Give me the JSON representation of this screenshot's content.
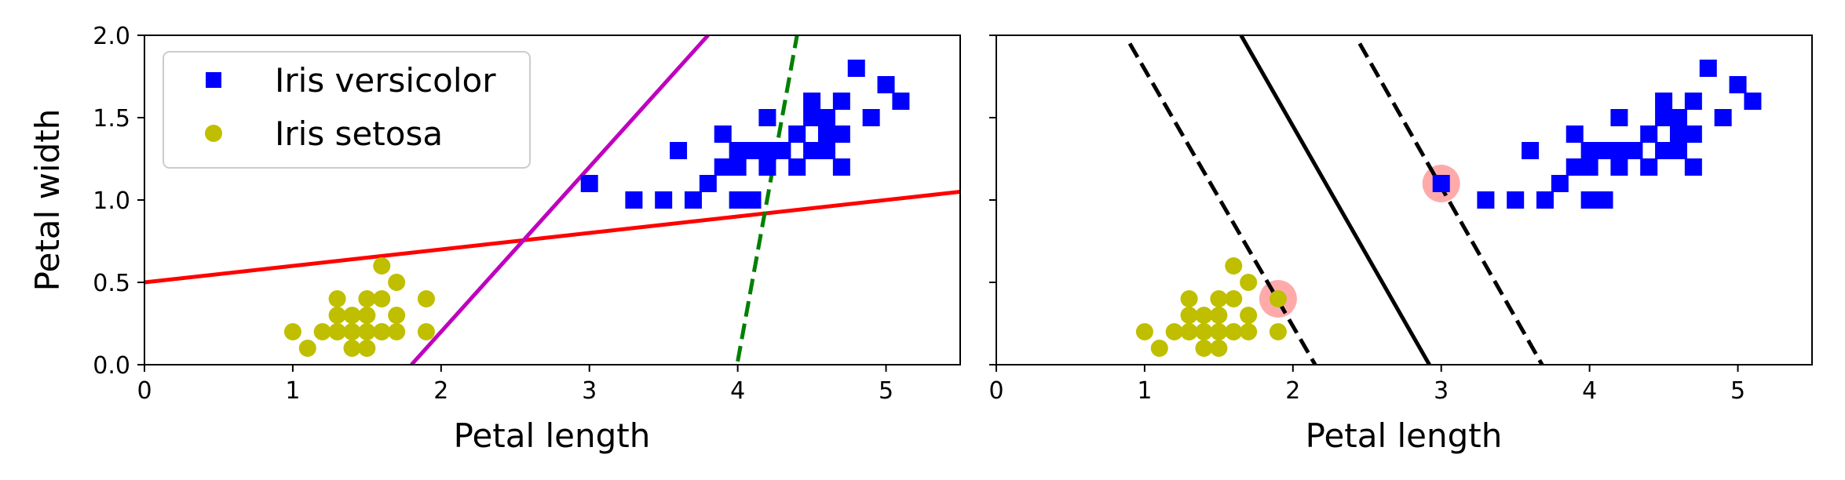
{
  "chart_data": [
    {
      "type": "scatter",
      "title": "",
      "xlabel": "Petal length",
      "ylabel": "Petal width",
      "xlim": [
        0,
        5.5
      ],
      "ylim": [
        0,
        2.0
      ],
      "xticks": [
        "0",
        "1",
        "2",
        "3",
        "4",
        "5"
      ],
      "yticks": [
        "0.0",
        "0.5",
        "1.0",
        "1.5",
        "2.0"
      ],
      "grid": false,
      "legend_position": "top-left",
      "series": [
        {
          "name": "Iris versicolor",
          "marker": "square",
          "color": "#0000ff",
          "x": [
            3.0,
            3.3,
            3.5,
            3.6,
            3.7,
            3.8,
            3.9,
            3.9,
            4.0,
            4.0,
            4.0,
            4.1,
            4.1,
            4.2,
            4.2,
            4.2,
            4.3,
            4.3,
            4.4,
            4.4,
            4.5,
            4.5,
            4.5,
            4.6,
            4.6,
            4.6,
            4.7,
            4.7,
            4.7,
            4.8,
            4.9,
            5.0,
            5.1
          ],
          "y": [
            1.1,
            1.0,
            1.0,
            1.3,
            1.0,
            1.1,
            1.2,
            1.4,
            1.0,
            1.3,
            1.2,
            1.0,
            1.3,
            1.3,
            1.5,
            1.2,
            1.3,
            1.3,
            1.4,
            1.2,
            1.5,
            1.3,
            1.6,
            1.5,
            1.4,
            1.3,
            1.4,
            1.6,
            1.2,
            1.8,
            1.5,
            1.7,
            1.6
          ]
        },
        {
          "name": "Iris setosa",
          "marker": "circle",
          "color": "#bfbf00",
          "x": [
            1.0,
            1.1,
            1.2,
            1.3,
            1.3,
            1.3,
            1.3,
            1.4,
            1.4,
            1.4,
            1.4,
            1.5,
            1.5,
            1.5,
            1.5,
            1.6,
            1.6,
            1.6,
            1.6,
            1.7,
            1.7,
            1.7,
            1.9,
            1.9
          ],
          "y": [
            0.2,
            0.1,
            0.2,
            0.2,
            0.3,
            0.4,
            0.2,
            0.2,
            0.3,
            0.1,
            0.2,
            0.2,
            0.1,
            0.3,
            0.4,
            0.2,
            0.4,
            0.6,
            0.2,
            0.2,
            0.5,
            0.3,
            0.4,
            0.2
          ]
        }
      ],
      "lines": [
        {
          "color": "#ff0000",
          "style": "solid",
          "points": [
            [
              0,
              0.5
            ],
            [
              5.5,
              1.05
            ]
          ]
        },
        {
          "color": "#bf00bf",
          "style": "solid",
          "points": [
            [
              1.8,
              0
            ],
            [
              3.8,
              2.0
            ]
          ]
        },
        {
          "color": "#008000",
          "style": "dashed",
          "points": [
            [
              4.0,
              0.02
            ],
            [
              4.4,
              2.0
            ]
          ]
        }
      ]
    },
    {
      "type": "scatter",
      "title": "",
      "xlabel": "Petal length",
      "ylabel": "",
      "xlim": [
        0,
        5.5
      ],
      "ylim": [
        0,
        2.0
      ],
      "xticks": [
        "0",
        "1",
        "2",
        "3",
        "4",
        "5"
      ],
      "yticks": [],
      "grid": false,
      "series": [
        {
          "name": "",
          "marker": "square",
          "color": "#0000ff",
          "x": [
            3.0,
            3.3,
            3.5,
            3.6,
            3.7,
            3.8,
            3.9,
            3.9,
            4.0,
            4.0,
            4.0,
            4.1,
            4.1,
            4.2,
            4.2,
            4.2,
            4.3,
            4.3,
            4.4,
            4.4,
            4.5,
            4.5,
            4.5,
            4.6,
            4.6,
            4.6,
            4.7,
            4.7,
            4.7,
            4.8,
            4.9,
            5.0,
            5.1
          ],
          "y": [
            1.1,
            1.0,
            1.0,
            1.3,
            1.0,
            1.1,
            1.2,
            1.4,
            1.0,
            1.3,
            1.2,
            1.0,
            1.3,
            1.3,
            1.5,
            1.2,
            1.3,
            1.3,
            1.4,
            1.2,
            1.5,
            1.3,
            1.6,
            1.5,
            1.4,
            1.3,
            1.4,
            1.6,
            1.2,
            1.8,
            1.5,
            1.7,
            1.6
          ]
        },
        {
          "name": "",
          "marker": "circle",
          "color": "#bfbf00",
          "x": [
            1.0,
            1.1,
            1.2,
            1.3,
            1.3,
            1.3,
            1.3,
            1.4,
            1.4,
            1.4,
            1.4,
            1.5,
            1.5,
            1.5,
            1.5,
            1.6,
            1.6,
            1.6,
            1.6,
            1.7,
            1.7,
            1.7,
            1.9,
            1.9
          ],
          "y": [
            0.2,
            0.1,
            0.2,
            0.2,
            0.3,
            0.4,
            0.2,
            0.2,
            0.3,
            0.1,
            0.2,
            0.2,
            0.1,
            0.3,
            0.4,
            0.2,
            0.4,
            0.6,
            0.2,
            0.2,
            0.5,
            0.3,
            0.4,
            0.2
          ]
        }
      ],
      "support_vectors": {
        "color": "#ffaaaa",
        "points": [
          [
            1.9,
            0.4
          ],
          [
            3.0,
            1.1
          ]
        ]
      },
      "lines": [
        {
          "color": "#000000",
          "style": "solid",
          "points": [
            [
              1.65,
              2.0
            ],
            [
              2.92,
              0
            ]
          ]
        },
        {
          "color": "#000000",
          "style": "dashed",
          "points": [
            [
              0.9,
              1.95
            ],
            [
              2.15,
              0
            ]
          ]
        },
        {
          "color": "#000000",
          "style": "dashed",
          "points": [
            [
              2.45,
              1.95
            ],
            [
              3.68,
              0
            ]
          ]
        }
      ]
    }
  ]
}
